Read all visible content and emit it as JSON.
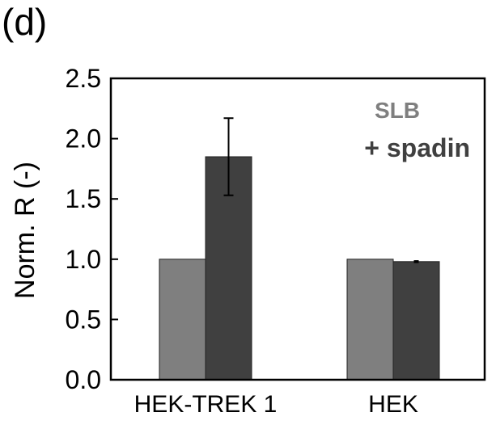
{
  "panel_label": "(d)",
  "chart_data": {
    "type": "bar",
    "categories": [
      "HEK-TREK 1",
      "HEK"
    ],
    "series": [
      {
        "name": "SLB",
        "values": [
          1.0,
          1.0
        ],
        "color": "#7f7f7f"
      },
      {
        "name": "+ spadin",
        "values": [
          1.85,
          0.98
        ],
        "errors": [
          0.32,
          0.005
        ],
        "color": "#404040"
      }
    ],
    "ylabel": "Norm. R (-)",
    "xlabel": "",
    "ylim": [
      0,
      2.5
    ],
    "yticks": [
      "0.0",
      "0.5",
      "1.0",
      "1.5",
      "2.0",
      "2.5"
    ],
    "legend_position": "top-right"
  }
}
